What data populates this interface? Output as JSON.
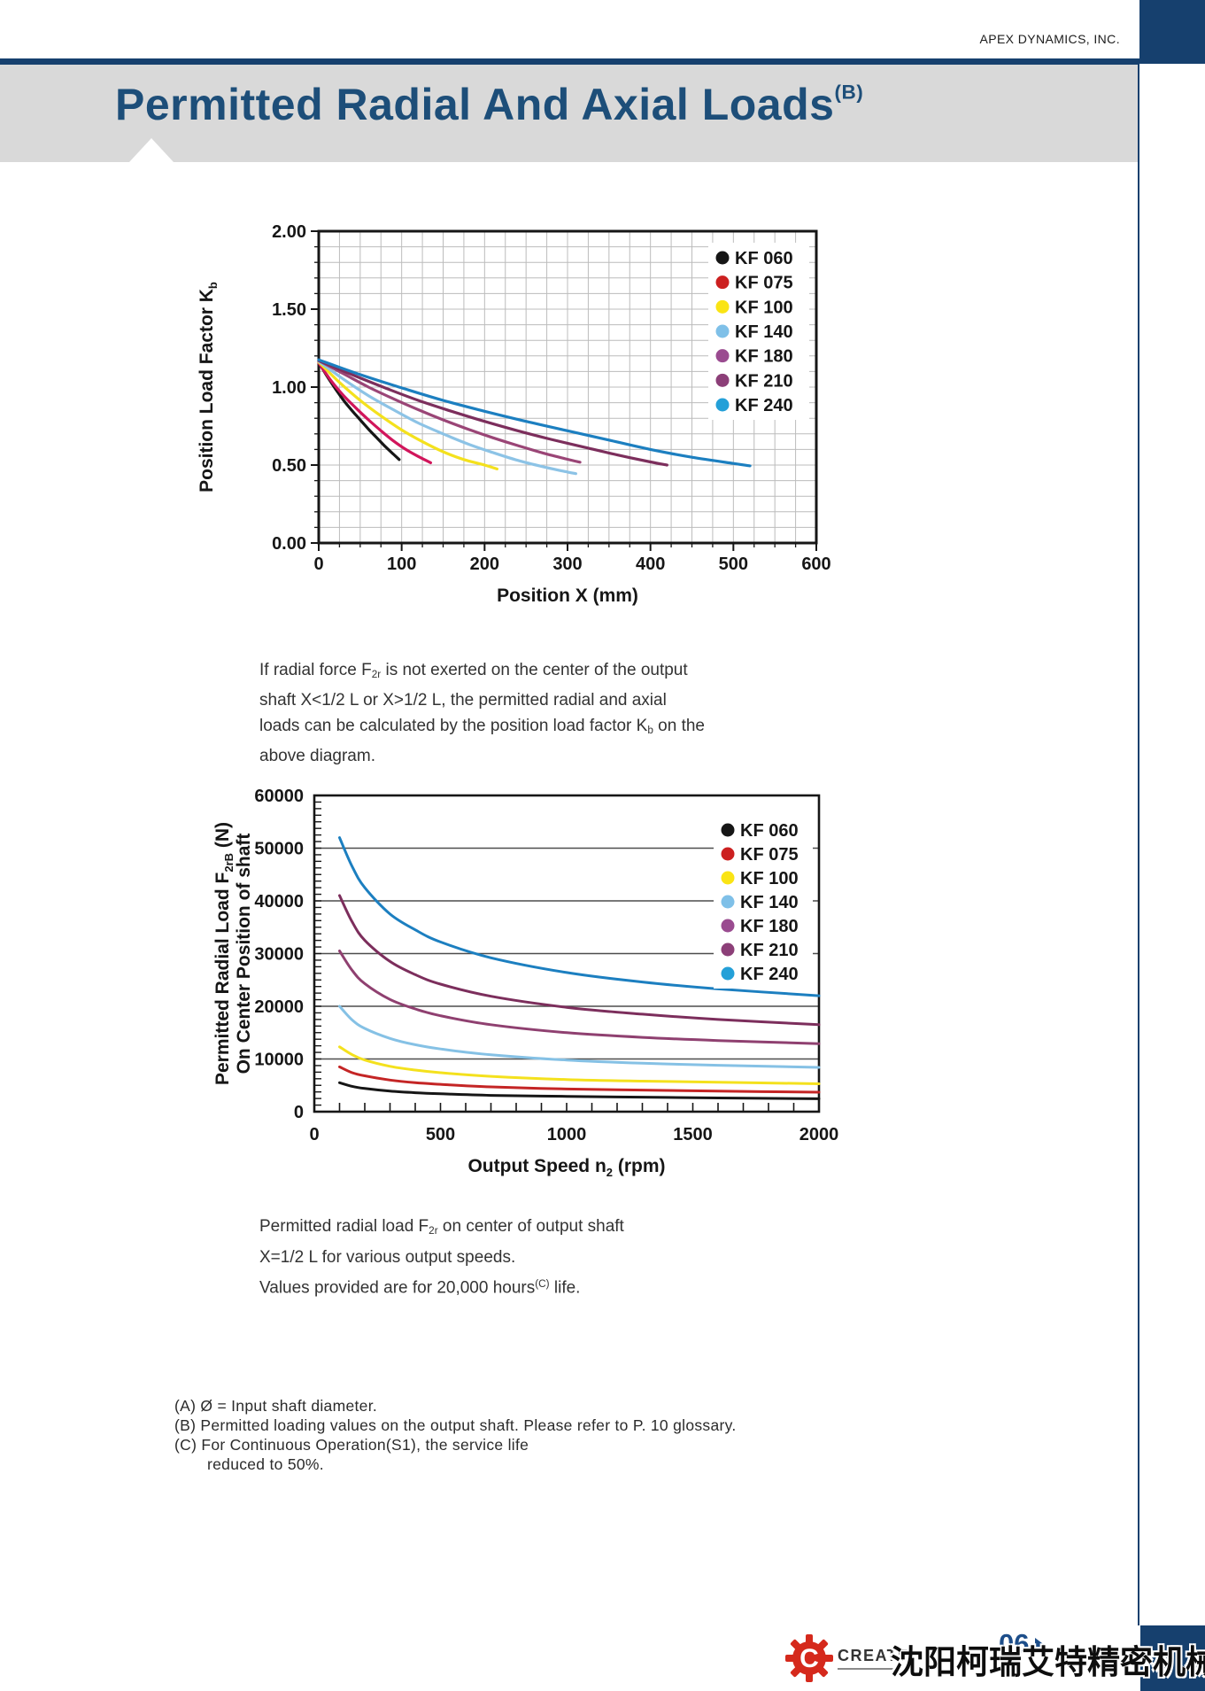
{
  "page": {
    "brand": "APEX DYNAMICS, INC.",
    "title": [
      {
        "t": "Permitted Radial And Axial Loads"
      },
      {
        "t": "(B)",
        "s": "sup"
      }
    ],
    "page_number": "06",
    "logo_text": "CREATE",
    "company_cn": "沈阳柯瑞艾特精密机械有限公司",
    "colors": {
      "navy": "#16406e",
      "title_blue": "#1d4e79",
      "banner_gray": "#d9d9d9",
      "logo_red": "#d5291c"
    }
  },
  "note1": {
    "lines": [
      [
        {
          "t": "If radial force F"
        },
        {
          "t": "2r",
          "s": "sub"
        },
        {
          "t": " is not exerted on the center of the  output"
        }
      ],
      [
        {
          "t": "shaft X<1/2 L or X>1/2 L, the permitted radial and axial"
        }
      ],
      [
        {
          "t": "loads can be calculated by the position load factor K"
        },
        {
          "t": "b",
          "s": "sub"
        },
        {
          "t": " on the"
        }
      ],
      [
        {
          "t": "above diagram."
        }
      ]
    ]
  },
  "caption2": {
    "lines": [
      [
        {
          "t": "Permitted radial load F"
        },
        {
          "t": "2r",
          "s": "sub"
        },
        {
          "t": " on center of output shaft"
        }
      ],
      [
        {
          "t": "X=1/2 L for various output speeds."
        }
      ],
      [
        {
          "t": "Values provided are for 20,000 hours"
        },
        {
          "t": "(C)",
          "s": "sup"
        },
        {
          "t": " life."
        }
      ]
    ]
  },
  "footnotes": {
    "lines": [
      [
        {
          "t": "(A)  Ø = Input shaft diameter."
        }
      ],
      [
        {
          "t": "(B)  Permitted loading values on the output shaft. Please refer to P. 10 glossary."
        }
      ],
      [
        {
          "t": "(C)  For Continuous Operation(S1), the service life"
        }
      ],
      [
        {
          "t": "reduced to 50%."
        }
      ]
    ]
  },
  "chart_data": [
    {
      "type": "line",
      "title": "",
      "xlabel": [
        {
          "t": "Position X (mm)"
        }
      ],
      "ylabel_lines": [
        [
          {
            "t": "Position Load Factor K"
          },
          {
            "t": "b",
            "s": "sub"
          }
        ]
      ],
      "xlim": [
        0,
        600
      ],
      "ylim": [
        0,
        2.0
      ],
      "x_tick_values": [
        0,
        100,
        200,
        300,
        400,
        500,
        600
      ],
      "x_tick_labels": [
        "0",
        "100",
        "200",
        "300",
        "400",
        "500",
        "600"
      ],
      "y_tick_values": [
        0,
        0.5,
        1.0,
        1.5,
        2.0
      ],
      "y_tick_labels": [
        "0.00",
        "0.50",
        "1.00",
        "1.50",
        "2.00"
      ],
      "grid": "square-minor",
      "minor_x": 25,
      "minor_y": 0.1,
      "legend_position": "top-right",
      "line_width": 3.2,
      "series": [
        {
          "name": "KF 060",
          "dot": "#161616",
          "color": "#161616",
          "points": [
            [
              0,
              1.16
            ],
            [
              10,
              1.07
            ],
            [
              20,
              0.99
            ],
            [
              30,
              0.915
            ],
            [
              40,
              0.85
            ],
            [
              50,
              0.79
            ],
            [
              60,
              0.73
            ],
            [
              70,
              0.675
            ],
            [
              80,
              0.62
            ],
            [
              90,
              0.57
            ],
            [
              97,
              0.535
            ]
          ]
        },
        {
          "name": "KF 075",
          "dot": "#cc2020",
          "color": "#d1155b",
          "points": [
            [
              0,
              1.155
            ],
            [
              15,
              1.04
            ],
            [
              30,
              0.945
            ],
            [
              45,
              0.865
            ],
            [
              60,
              0.79
            ],
            [
              75,
              0.72
            ],
            [
              90,
              0.655
            ],
            [
              105,
              0.6
            ],
            [
              120,
              0.555
            ],
            [
              135,
              0.515
            ]
          ]
        },
        {
          "name": "KF 100",
          "dot": "#fae414",
          "color": "#f4e11d",
          "points": [
            [
              0,
              1.16
            ],
            [
              25,
              1.03
            ],
            [
              50,
              0.915
            ],
            [
              75,
              0.815
            ],
            [
              100,
              0.725
            ],
            [
              125,
              0.65
            ],
            [
              150,
              0.585
            ],
            [
              175,
              0.535
            ],
            [
              200,
              0.5
            ],
            [
              215,
              0.475
            ]
          ]
        },
        {
          "name": "KF 140",
          "dot": "#7fc0e8",
          "color": "#8cc3e6",
          "points": [
            [
              0,
              1.165
            ],
            [
              30,
              1.05
            ],
            [
              60,
              0.945
            ],
            [
              90,
              0.855
            ],
            [
              120,
              0.77
            ],
            [
              150,
              0.7
            ],
            [
              180,
              0.635
            ],
            [
              210,
              0.58
            ],
            [
              240,
              0.53
            ],
            [
              270,
              0.49
            ],
            [
              300,
              0.455
            ],
            [
              310,
              0.445
            ]
          ]
        },
        {
          "name": "KF 180",
          "dot": "#9a4b90",
          "color": "#9a4576",
          "points": [
            [
              0,
              1.17
            ],
            [
              30,
              1.085
            ],
            [
              60,
              1.0
            ],
            [
              90,
              0.925
            ],
            [
              120,
              0.855
            ],
            [
              150,
              0.79
            ],
            [
              180,
              0.73
            ],
            [
              210,
              0.675
            ],
            [
              240,
              0.625
            ],
            [
              270,
              0.578
            ],
            [
              300,
              0.537
            ],
            [
              315,
              0.518
            ]
          ]
        },
        {
          "name": "KF 210",
          "dot": "#8c3f78",
          "color": "#7c2e5c",
          "points": [
            [
              0,
              1.17
            ],
            [
              40,
              1.08
            ],
            [
              80,
              0.995
            ],
            [
              120,
              0.915
            ],
            [
              160,
              0.845
            ],
            [
              200,
              0.78
            ],
            [
              240,
              0.72
            ],
            [
              280,
              0.665
            ],
            [
              320,
              0.615
            ],
            [
              360,
              0.565
            ],
            [
              400,
              0.52
            ],
            [
              420,
              0.5
            ]
          ]
        },
        {
          "name": "KF 240",
          "dot": "#24a0d8",
          "color": "#1c7fc0",
          "points": [
            [
              0,
              1.175
            ],
            [
              50,
              1.08
            ],
            [
              100,
              0.995
            ],
            [
              150,
              0.915
            ],
            [
              200,
              0.845
            ],
            [
              250,
              0.78
            ],
            [
              300,
              0.72
            ],
            [
              350,
              0.66
            ],
            [
              400,
              0.6
            ],
            [
              450,
              0.55
            ],
            [
              500,
              0.51
            ],
            [
              520,
              0.495
            ]
          ]
        }
      ]
    },
    {
      "type": "line",
      "title": "",
      "xlabel": [
        {
          "t": "Output Speed n"
        },
        {
          "t": "2",
          "s": "sub"
        },
        {
          "t": "  (rpm)"
        }
      ],
      "ylabel_lines": [
        [
          {
            "t": "Permitted Radial Load F"
          },
          {
            "t": "2rB",
            "s": "sub"
          },
          {
            "t": " (N)"
          }
        ],
        [
          {
            "t": "On Center Position of shaft"
          }
        ]
      ],
      "xlim": [
        0,
        2000
      ],
      "ylim": [
        0,
        60000
      ],
      "x_tick_values": [
        0,
        500,
        1000,
        1500,
        2000
      ],
      "x_tick_labels": [
        "0",
        "500",
        "1000",
        "1500",
        "2000"
      ],
      "y_tick_values": [
        0,
        10000,
        20000,
        30000,
        40000,
        50000,
        60000
      ],
      "y_tick_labels": [
        "0",
        "10000",
        "20000",
        "30000",
        "40000",
        "50000",
        "60000"
      ],
      "grid": "horizontal-major",
      "minor_tick_x": 100,
      "minor_tick_y": 1250,
      "legend_position": "top-right",
      "line_width": 3,
      "series": [
        {
          "name": "KF 060",
          "dot": "#161616",
          "color": "#161616",
          "points": [
            [
              100,
              5500
            ],
            [
              150,
              4800
            ],
            [
              200,
              4400
            ],
            [
              300,
              3900
            ],
            [
              400,
              3600
            ],
            [
              500,
              3400
            ],
            [
              700,
              3100
            ],
            [
              1000,
              2900
            ],
            [
              1300,
              2750
            ],
            [
              1600,
              2600
            ],
            [
              2000,
              2450
            ]
          ]
        },
        {
          "name": "KF 075",
          "dot": "#cc2020",
          "color": "#c42525",
          "points": [
            [
              100,
              8500
            ],
            [
              150,
              7400
            ],
            [
              200,
              6800
            ],
            [
              300,
              6000
            ],
            [
              400,
              5500
            ],
            [
              500,
              5200
            ],
            [
              700,
              4700
            ],
            [
              1000,
              4300
            ],
            [
              1300,
              4100
            ],
            [
              1600,
              3900
            ],
            [
              2000,
              3700
            ]
          ]
        },
        {
          "name": "KF 100",
          "dot": "#fae414",
          "color": "#f4e11d",
          "points": [
            [
              100,
              12300
            ],
            [
              150,
              10800
            ],
            [
              200,
              9800
            ],
            [
              300,
              8600
            ],
            [
              400,
              7900
            ],
            [
              500,
              7400
            ],
            [
              700,
              6700
            ],
            [
              1000,
              6100
            ],
            [
              1300,
              5800
            ],
            [
              1600,
              5600
            ],
            [
              2000,
              5300
            ]
          ]
        },
        {
          "name": "KF 140",
          "dot": "#7fc0e8",
          "color": "#85c1e5",
          "points": [
            [
              100,
              20000
            ],
            [
              150,
              17400
            ],
            [
              200,
              15800
            ],
            [
              300,
              13900
            ],
            [
              400,
              12700
            ],
            [
              500,
              11900
            ],
            [
              700,
              10800
            ],
            [
              1000,
              9800
            ],
            [
              1300,
              9200
            ],
            [
              1600,
              8800
            ],
            [
              2000,
              8400
            ]
          ]
        },
        {
          "name": "KF 180",
          "dot": "#9a4b90",
          "color": "#8f4070",
          "points": [
            [
              100,
              30500
            ],
            [
              150,
              26800
            ],
            [
              200,
              24300
            ],
            [
              300,
              21300
            ],
            [
              400,
              19500
            ],
            [
              500,
              18200
            ],
            [
              700,
              16500
            ],
            [
              1000,
              15000
            ],
            [
              1300,
              14100
            ],
            [
              1600,
              13500
            ],
            [
              2000,
              12900
            ]
          ]
        },
        {
          "name": "KF 210",
          "dot": "#8c3f78",
          "color": "#7c2e5c",
          "points": [
            [
              100,
              41000
            ],
            [
              150,
              36000
            ],
            [
              200,
              32500
            ],
            [
              300,
              28500
            ],
            [
              400,
              26000
            ],
            [
              500,
              24200
            ],
            [
              700,
              21900
            ],
            [
              1000,
              19800
            ],
            [
              1300,
              18500
            ],
            [
              1600,
              17500
            ],
            [
              2000,
              16500
            ]
          ]
        },
        {
          "name": "KF 240",
          "dot": "#24a0d8",
          "color": "#1c7fc0",
          "points": [
            [
              100,
              52000
            ],
            [
              150,
              46500
            ],
            [
              200,
              42500
            ],
            [
              300,
              37500
            ],
            [
              400,
              34500
            ],
            [
              500,
              32200
            ],
            [
              700,
              29200
            ],
            [
              1000,
              26400
            ],
            [
              1300,
              24600
            ],
            [
              1600,
              23300
            ],
            [
              2000,
              22000
            ]
          ]
        }
      ]
    }
  ]
}
